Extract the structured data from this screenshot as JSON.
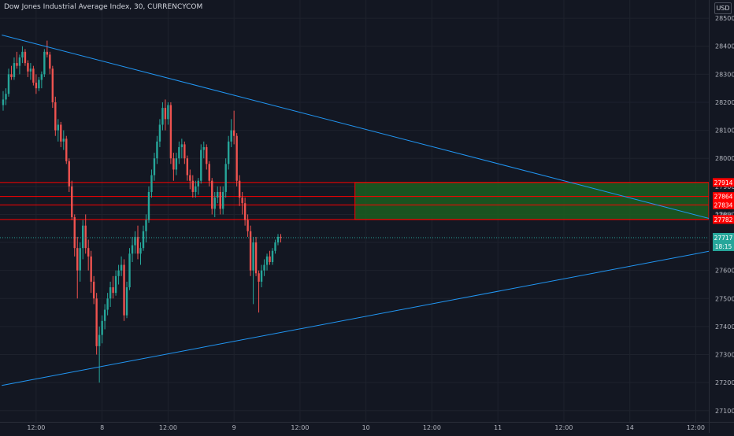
{
  "header": {
    "title": "Dow Jones Industrial Average Index, 30, CURRENCYCOM",
    "currency": "USD"
  },
  "colors": {
    "background": "#131722",
    "grid": "#1e222d",
    "up": "#26a69a",
    "down": "#ef5350",
    "trendline": "#2196f3",
    "level_line": "#ff0000",
    "zone_fill": "#1b5e20",
    "axis_text": "#b2b5be"
  },
  "chart_data": {
    "type": "candlestick",
    "title": "Dow Jones Industrial Average Index, 30, CURRENCYCOM",
    "ylim": [
      27060,
      28520
    ],
    "y_ticks": [
      27100,
      27200,
      27300,
      27400,
      27500,
      27600,
      27700,
      27800,
      27900,
      28000,
      28100,
      28200,
      28300,
      28400,
      28500
    ],
    "x_ticks": [
      {
        "label": "12:00",
        "bar": 12
      },
      {
        "label": "8",
        "bar": 36
      },
      {
        "label": "12:00",
        "bar": 60
      },
      {
        "label": "9",
        "bar": 84
      },
      {
        "label": "12:00",
        "bar": 108
      },
      {
        "label": "10",
        "bar": 132
      },
      {
        "label": "12:00",
        "bar": 156
      },
      {
        "label": "11",
        "bar": 180
      },
      {
        "label": "12:00",
        "bar": 204
      },
      {
        "label": "14",
        "bar": 228
      },
      {
        "label": "12:00",
        "bar": 252
      }
    ],
    "candles": [
      {
        "o": 28190,
        "h": 28240,
        "l": 28170,
        "c": 28210
      },
      {
        "o": 28210,
        "h": 28250,
        "l": 28190,
        "c": 28230
      },
      {
        "o": 28230,
        "h": 28320,
        "l": 28220,
        "c": 28300
      },
      {
        "o": 28300,
        "h": 28330,
        "l": 28280,
        "c": 28290
      },
      {
        "o": 28290,
        "h": 28360,
        "l": 28280,
        "c": 28340
      },
      {
        "o": 28340,
        "h": 28380,
        "l": 28320,
        "c": 28330
      },
      {
        "o": 28330,
        "h": 28370,
        "l": 28300,
        "c": 28360
      },
      {
        "o": 28360,
        "h": 28400,
        "l": 28340,
        "c": 28380
      },
      {
        "o": 28380,
        "h": 28390,
        "l": 28330,
        "c": 28340
      },
      {
        "o": 28340,
        "h": 28350,
        "l": 28290,
        "c": 28310
      },
      {
        "o": 28310,
        "h": 28340,
        "l": 28280,
        "c": 28320
      },
      {
        "o": 28320,
        "h": 28330,
        "l": 28260,
        "c": 28270
      },
      {
        "o": 28270,
        "h": 28300,
        "l": 28230,
        "c": 28250
      },
      {
        "o": 28250,
        "h": 28290,
        "l": 28240,
        "c": 28280
      },
      {
        "o": 28280,
        "h": 28310,
        "l": 28250,
        "c": 28300
      },
      {
        "o": 28300,
        "h": 28390,
        "l": 28290,
        "c": 28380
      },
      {
        "o": 28380,
        "h": 28420,
        "l": 28360,
        "c": 28370
      },
      {
        "o": 28370,
        "h": 28380,
        "l": 28300,
        "c": 28320
      },
      {
        "o": 28320,
        "h": 28330,
        "l": 28180,
        "c": 28200
      },
      {
        "o": 28200,
        "h": 28220,
        "l": 28080,
        "c": 28100
      },
      {
        "o": 28100,
        "h": 28140,
        "l": 28060,
        "c": 28120
      },
      {
        "o": 28120,
        "h": 28130,
        "l": 28040,
        "c": 28060
      },
      {
        "o": 28060,
        "h": 28100,
        "l": 28030,
        "c": 28070
      },
      {
        "o": 28070,
        "h": 28080,
        "l": 27980,
        "c": 27990
      },
      {
        "o": 27990,
        "h": 28000,
        "l": 27880,
        "c": 27900
      },
      {
        "o": 27900,
        "h": 27920,
        "l": 27780,
        "c": 27790
      },
      {
        "o": 27790,
        "h": 27800,
        "l": 27650,
        "c": 27680
      },
      {
        "o": 27680,
        "h": 27720,
        "l": 27500,
        "c": 27600
      },
      {
        "o": 27600,
        "h": 27700,
        "l": 27560,
        "c": 27680
      },
      {
        "o": 27680,
        "h": 27780,
        "l": 27640,
        "c": 27760
      },
      {
        "o": 27760,
        "h": 27800,
        "l": 27660,
        "c": 27680
      },
      {
        "o": 27680,
        "h": 27710,
        "l": 27600,
        "c": 27650
      },
      {
        "o": 27650,
        "h": 27670,
        "l": 27520,
        "c": 27560
      },
      {
        "o": 27560,
        "h": 27580,
        "l": 27480,
        "c": 27500
      },
      {
        "o": 27500,
        "h": 27520,
        "l": 27300,
        "c": 27330
      },
      {
        "o": 27330,
        "h": 27400,
        "l": 27200,
        "c": 27370
      },
      {
        "o": 27370,
        "h": 27440,
        "l": 27340,
        "c": 27420
      },
      {
        "o": 27420,
        "h": 27480,
        "l": 27390,
        "c": 27460
      },
      {
        "o": 27460,
        "h": 27520,
        "l": 27440,
        "c": 27500
      },
      {
        "o": 27500,
        "h": 27560,
        "l": 27470,
        "c": 27540
      },
      {
        "o": 27540,
        "h": 27580,
        "l": 27500,
        "c": 27520
      },
      {
        "o": 27520,
        "h": 27600,
        "l": 27510,
        "c": 27580
      },
      {
        "o": 27580,
        "h": 27620,
        "l": 27550,
        "c": 27600
      },
      {
        "o": 27600,
        "h": 27650,
        "l": 27580,
        "c": 27620
      },
      {
        "o": 27620,
        "h": 27640,
        "l": 27420,
        "c": 27440
      },
      {
        "o": 27440,
        "h": 27560,
        "l": 27430,
        "c": 27540
      },
      {
        "o": 27540,
        "h": 27680,
        "l": 27530,
        "c": 27660
      },
      {
        "o": 27660,
        "h": 27720,
        "l": 27630,
        "c": 27690
      },
      {
        "o": 27690,
        "h": 27740,
        "l": 27660,
        "c": 27720
      },
      {
        "o": 27720,
        "h": 27760,
        "l": 27640,
        "c": 27660
      },
      {
        "o": 27660,
        "h": 27700,
        "l": 27620,
        "c": 27680
      },
      {
        "o": 27680,
        "h": 27760,
        "l": 27670,
        "c": 27740
      },
      {
        "o": 27740,
        "h": 27800,
        "l": 27700,
        "c": 27780
      },
      {
        "o": 27780,
        "h": 27900,
        "l": 27770,
        "c": 27880
      },
      {
        "o": 27880,
        "h": 27960,
        "l": 27860,
        "c": 27940
      },
      {
        "o": 27940,
        "h": 28020,
        "l": 27920,
        "c": 28000
      },
      {
        "o": 28000,
        "h": 28080,
        "l": 27980,
        "c": 28060
      },
      {
        "o": 28060,
        "h": 28140,
        "l": 28040,
        "c": 28120
      },
      {
        "o": 28120,
        "h": 28200,
        "l": 28100,
        "c": 28180
      },
      {
        "o": 28180,
        "h": 28210,
        "l": 28100,
        "c": 28140
      },
      {
        "o": 28140,
        "h": 28200,
        "l": 28120,
        "c": 28190
      },
      {
        "o": 28190,
        "h": 28200,
        "l": 27980,
        "c": 28000
      },
      {
        "o": 28000,
        "h": 28020,
        "l": 27920,
        "c": 27960
      },
      {
        "o": 27960,
        "h": 28020,
        "l": 27940,
        "c": 28000
      },
      {
        "o": 28000,
        "h": 28060,
        "l": 27980,
        "c": 28040
      },
      {
        "o": 28040,
        "h": 28070,
        "l": 28000,
        "c": 28050
      },
      {
        "o": 28050,
        "h": 28060,
        "l": 27980,
        "c": 28000
      },
      {
        "o": 28000,
        "h": 28010,
        "l": 27920,
        "c": 27940
      },
      {
        "o": 27940,
        "h": 27960,
        "l": 27890,
        "c": 27920
      },
      {
        "o": 27920,
        "h": 27940,
        "l": 27860,
        "c": 27880
      },
      {
        "o": 27880,
        "h": 27920,
        "l": 27860,
        "c": 27900
      },
      {
        "o": 27900,
        "h": 27930,
        "l": 27870,
        "c": 27920
      },
      {
        "o": 27920,
        "h": 28050,
        "l": 27910,
        "c": 28030
      },
      {
        "o": 28030,
        "h": 28060,
        "l": 28000,
        "c": 28040
      },
      {
        "o": 28040,
        "h": 28050,
        "l": 27960,
        "c": 27980
      },
      {
        "o": 27980,
        "h": 27990,
        "l": 27900,
        "c": 27920
      },
      {
        "o": 27920,
        "h": 27930,
        "l": 27800,
        "c": 27820
      },
      {
        "o": 27820,
        "h": 27880,
        "l": 27790,
        "c": 27860
      },
      {
        "o": 27860,
        "h": 27900,
        "l": 27840,
        "c": 27880
      },
      {
        "o": 27880,
        "h": 27900,
        "l": 27800,
        "c": 27820
      },
      {
        "o": 27820,
        "h": 27900,
        "l": 27800,
        "c": 27880
      },
      {
        "o": 27880,
        "h": 28000,
        "l": 27860,
        "c": 27980
      },
      {
        "o": 27980,
        "h": 28080,
        "l": 27960,
        "c": 28060
      },
      {
        "o": 28060,
        "h": 28140,
        "l": 28040,
        "c": 28100
      },
      {
        "o": 28100,
        "h": 28170,
        "l": 28050,
        "c": 28080
      },
      {
        "o": 28080,
        "h": 28090,
        "l": 27900,
        "c": 27920
      },
      {
        "o": 27920,
        "h": 27940,
        "l": 27830,
        "c": 27860
      },
      {
        "o": 27860,
        "h": 27880,
        "l": 27800,
        "c": 27840
      },
      {
        "o": 27840,
        "h": 27860,
        "l": 27760,
        "c": 27780
      },
      {
        "o": 27780,
        "h": 27800,
        "l": 27720,
        "c": 27740
      },
      {
        "o": 27740,
        "h": 27760,
        "l": 27580,
        "c": 27600
      },
      {
        "o": 27600,
        "h": 27720,
        "l": 27480,
        "c": 27700
      },
      {
        "o": 27700,
        "h": 27720,
        "l": 27580,
        "c": 27590
      },
      {
        "o": 27590,
        "h": 27600,
        "l": 27450,
        "c": 27560
      },
      {
        "o": 27560,
        "h": 27620,
        "l": 27540,
        "c": 27600
      },
      {
        "o": 27600,
        "h": 27640,
        "l": 27580,
        "c": 27620
      },
      {
        "o": 27620,
        "h": 27660,
        "l": 27600,
        "c": 27650
      },
      {
        "o": 27650,
        "h": 27670,
        "l": 27620,
        "c": 27630
      },
      {
        "o": 27630,
        "h": 27680,
        "l": 27620,
        "c": 27670
      },
      {
        "o": 27670,
        "h": 27710,
        "l": 27660,
        "c": 27700
      },
      {
        "o": 27700,
        "h": 27730,
        "l": 27690,
        "c": 27720
      },
      {
        "o": 27720,
        "h": 27730,
        "l": 27700,
        "c": 27717
      }
    ],
    "trendlines": [
      {
        "p1": {
          "bar": -0.5,
          "value": 28440
        },
        "p2": {
          "bar": 263,
          "value": 27770
        }
      },
      {
        "p1": {
          "bar": -0.5,
          "value": 27190
        },
        "p2": {
          "bar": 263,
          "value": 27680
        }
      }
    ],
    "zone": {
      "from_bar": 128,
      "to_bar": 263,
      "top": 27914,
      "bottom": 27782
    },
    "levels": [
      {
        "value": 27914,
        "label": "27914"
      },
      {
        "value": 27864,
        "label": "27864"
      },
      {
        "value": 27834,
        "label": "27834"
      },
      {
        "value": 27782,
        "label": "27782"
      }
    ],
    "hidden_tags": [
      "27780",
      "27800"
    ],
    "last_price": {
      "value": 27717,
      "label": "27717",
      "countdown": "18:15"
    }
  }
}
